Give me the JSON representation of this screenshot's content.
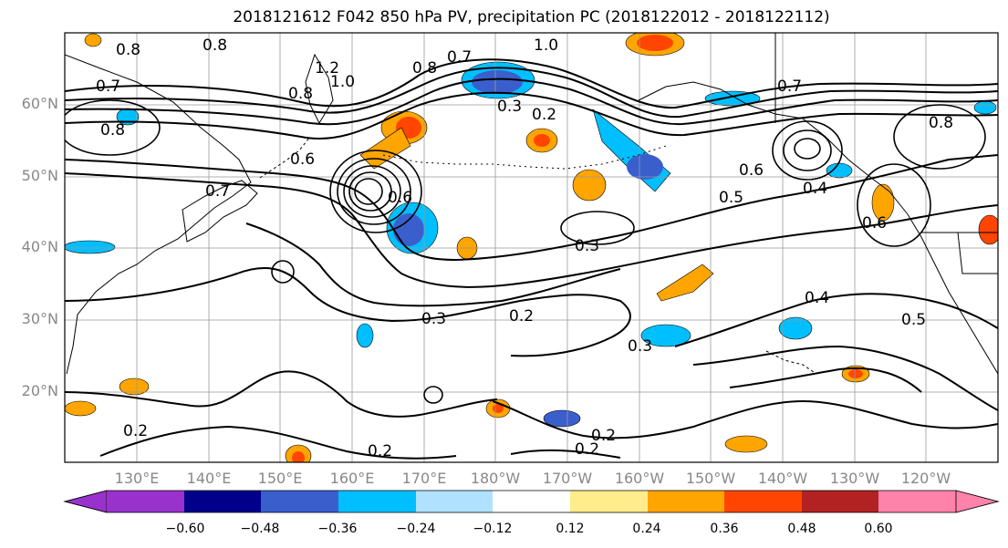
{
  "title": "2018121612 F042 850 hPa PV, precipitation PC (2018122012 - 2018122112)",
  "map": {
    "lat_labels": [
      "60°N",
      "50°N",
      "40°N",
      "30°N",
      "20°N"
    ],
    "lon_labels": [
      "130°E",
      "140°E",
      "150°E",
      "160°E",
      "170°E",
      "180°W",
      "170°W",
      "160°W",
      "150°W",
      "140°W",
      "130°W",
      "120°W"
    ],
    "contour_labels": [
      "0.8",
      "0.8",
      "0.7",
      "0.8",
      "0.8",
      "1.2",
      "1.0",
      "0.8",
      "0.7",
      "1.0",
      "0.3",
      "0.2",
      "0.6",
      "0.7",
      "0.6",
      "0.3",
      "0.2",
      "0.3",
      "0.2",
      "0.2",
      "0.2",
      "0.2",
      "0.4",
      "0.5",
      "0.6",
      "0.4",
      "0.5",
      "0.6",
      "0.3",
      "0.7",
      "0.8"
    ]
  },
  "colorbar": {
    "colors": [
      "#9932cc",
      "#00008b",
      "#3a5fcd",
      "#00bfff",
      "#b0e2ff",
      "#ffffff",
      "#ffec8b",
      "#ffa500",
      "#ff4500",
      "#b22222",
      "#ff82ab"
    ],
    "tick_labels": [
      "−0.60",
      "−0.48",
      "−0.36",
      "−0.24",
      "−0.12",
      "0.12",
      "0.24",
      "0.36",
      "0.48",
      "0.60"
    ]
  }
}
